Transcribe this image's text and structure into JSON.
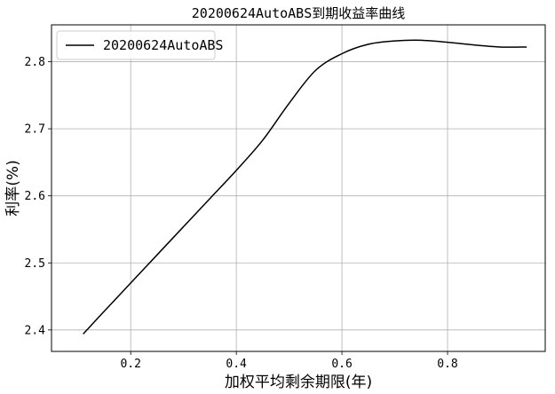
{
  "chart_data": {
    "type": "line",
    "title": "20200624AutoABS到期收益率曲线",
    "xlabel": "加权平均剩余期限(年)",
    "ylabel": "利率(%)",
    "xlim": [
      0.05,
      0.985
    ],
    "ylim": [
      2.368,
      2.855
    ],
    "xticks": [
      0.2,
      0.4,
      0.6,
      0.8
    ],
    "yticks": [
      2.4,
      2.5,
      2.6,
      2.7,
      2.8
    ],
    "grid": true,
    "legend_position": "top-left",
    "series": [
      {
        "name": "20200624AutoABS",
        "color": "#000000",
        "x": [
          0.11,
          0.15,
          0.2,
          0.25,
          0.3,
          0.35,
          0.4,
          0.45,
          0.5,
          0.55,
          0.6,
          0.65,
          0.7,
          0.75,
          0.8,
          0.85,
          0.9,
          0.95
        ],
        "y": [
          2.394,
          2.428,
          2.47,
          2.512,
          2.554,
          2.596,
          2.638,
          2.683,
          2.738,
          2.787,
          2.812,
          2.826,
          2.831,
          2.832,
          2.829,
          2.825,
          2.822,
          2.822
        ]
      }
    ]
  }
}
